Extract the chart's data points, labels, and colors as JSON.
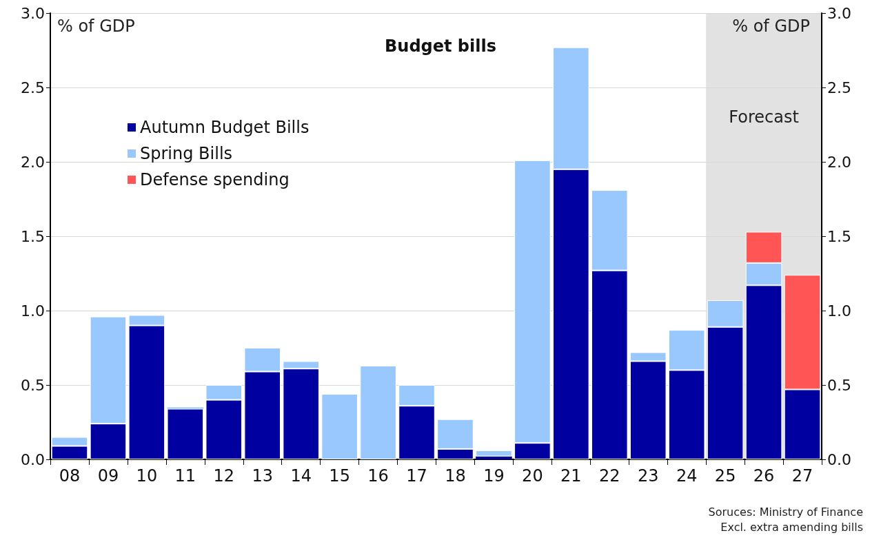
{
  "chart_data": {
    "type": "bar",
    "title": "Budget bills",
    "ylabel": "% of GDP",
    "y2label": "% of GDP",
    "categories": [
      "08",
      "09",
      "10",
      "11",
      "12",
      "13",
      "14",
      "15",
      "16",
      "17",
      "18",
      "19",
      "20",
      "21",
      "22",
      "23",
      "24",
      "25",
      "26",
      "27"
    ],
    "stacked": true,
    "series": [
      {
        "name": "Autumn Budget Bills",
        "color": "#0000a0",
        "values": [
          0.09,
          0.24,
          0.9,
          0.34,
          0.4,
          0.59,
          0.61,
          0,
          0,
          0.36,
          0.07,
          0.02,
          0.11,
          1.95,
          1.27,
          0.66,
          0.6,
          0.89,
          1.17,
          0.47
        ]
      },
      {
        "name": "Spring Bills",
        "color": "#99c8ff",
        "values": [
          0.06,
          0.72,
          0.07,
          0.01,
          0.1,
          0.16,
          0.05,
          0.44,
          0.63,
          0.14,
          0.2,
          0.04,
          1.9,
          0.82,
          0.54,
          0.06,
          0.27,
          0.18,
          0.15,
          null
        ]
      },
      {
        "name": "Defense spending",
        "color": "#ff5555",
        "values": [
          null,
          null,
          null,
          null,
          null,
          null,
          null,
          null,
          null,
          null,
          null,
          null,
          null,
          null,
          null,
          null,
          null,
          null,
          0.21,
          0.77
        ]
      }
    ],
    "ylim": [
      0,
      3
    ],
    "yticks": [
      {
        "value": 0,
        "label": "0.0"
      },
      {
        "value": 0.5,
        "label": "0.5"
      },
      {
        "value": 1,
        "label": "1.0"
      },
      {
        "value": 1.5,
        "label": "1.5"
      },
      {
        "value": 2,
        "label": "2.0"
      },
      {
        "value": 2.5,
        "label": "2.5"
      },
      {
        "value": 3,
        "label": "3.0"
      }
    ],
    "y2lim": [
      0,
      3
    ],
    "y2ticks": [
      {
        "value": 0,
        "label": "0.0"
      },
      {
        "value": 0.5,
        "label": "0.5"
      },
      {
        "value": 1,
        "label": "1.0"
      },
      {
        "value": 1.5,
        "label": "1.5"
      },
      {
        "value": 2,
        "label": "2.0"
      },
      {
        "value": 2.5,
        "label": "2.5"
      },
      {
        "value": 3,
        "label": "3.0"
      }
    ],
    "bands": [
      {
        "axis": "x",
        "from": "25",
        "to": "27",
        "label": "Forecast",
        "color": "#e2e2e2"
      }
    ],
    "grid": "y",
    "legend": "top left",
    "annotations": [
      "Soruces: Ministry of Finance",
      "Excl. extra amending bills"
    ]
  }
}
